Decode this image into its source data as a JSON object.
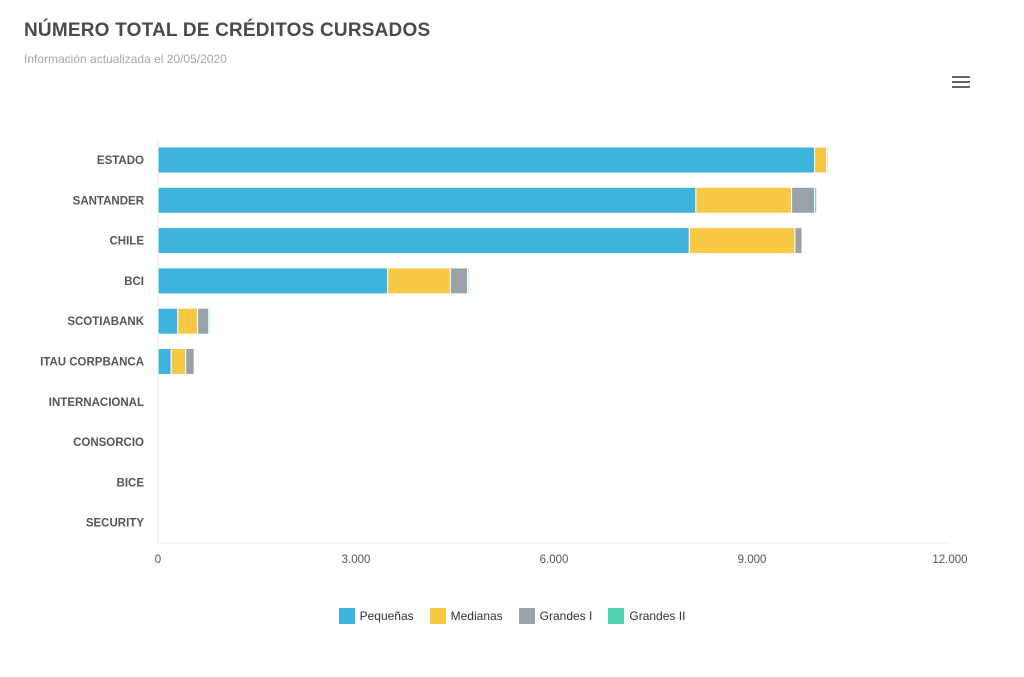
{
  "header": {
    "title": "NÚMERO TOTAL DE CRÉDITOS CURSADOS",
    "subtitle": "Información actualizada el 20/05/2020",
    "menu_icon": "hamburger-menu-icon"
  },
  "chart_data": {
    "type": "bar",
    "orientation": "horizontal",
    "stacked": true,
    "categories": [
      "ESTADO",
      "SANTANDER",
      "CHILE",
      "BCI",
      "SCOTIABANK",
      "ITAU CORPBANCA",
      "INTERNACIONAL",
      "CONSORCIO",
      "BICE",
      "SECURITY"
    ],
    "series": [
      {
        "name": "Pequeñas",
        "color": "#3db4dc",
        "values": [
          9950,
          8150,
          8050,
          3480,
          300,
          200,
          0,
          0,
          0,
          0
        ]
      },
      {
        "name": "Medianas",
        "color": "#f7c843",
        "values": [
          180,
          1450,
          1600,
          950,
          300,
          220,
          0,
          0,
          0,
          0
        ]
      },
      {
        "name": "Grandes I",
        "color": "#9aa2a9",
        "values": [
          20,
          350,
          110,
          260,
          170,
          130,
          0,
          0,
          0,
          0
        ]
      },
      {
        "name": "Grandes II",
        "color": "#4fd3b0",
        "values": [
          10,
          30,
          10,
          20,
          20,
          10,
          0,
          0,
          0,
          0
        ]
      }
    ],
    "xlim": [
      0,
      12000
    ],
    "xticks": [
      0,
      3000,
      6000,
      9000,
      12000
    ],
    "xtick_labels": [
      "0",
      "3.000",
      "6.000",
      "9.000",
      "12.000"
    ],
    "grid": false,
    "legend_position": "bottom-center"
  }
}
